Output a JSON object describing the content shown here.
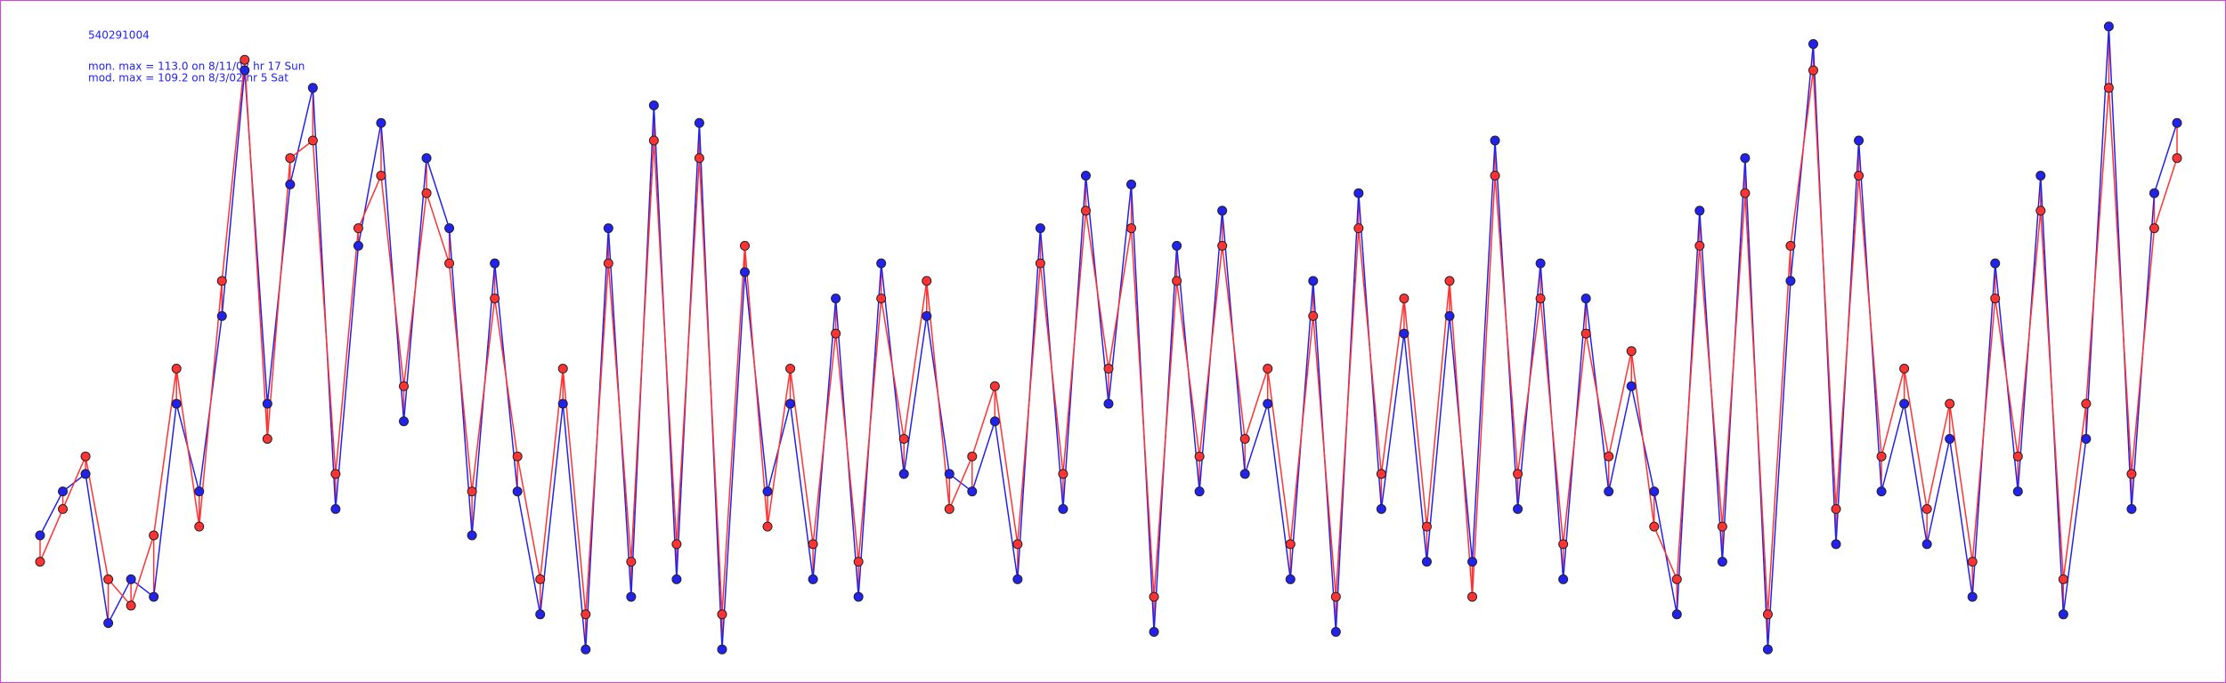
{
  "chart_data": {
    "type": "line",
    "title": "540291004",
    "annotations": [
      "mon. max =  113.0 on 8/11/02 hr 17 Sun",
      "mod. max =  109.2 on 8/3/02 hr 5 Sat"
    ],
    "ylim": [
      40,
      115
    ],
    "series": [
      {
        "color": "#2222ee",
        "values": [
          55,
          60,
          62,
          45,
          50,
          48,
          70,
          60,
          80,
          108,
          70,
          95,
          106,
          58,
          88,
          102,
          68,
          98,
          90,
          55,
          86,
          60,
          46,
          70,
          42,
          90,
          48,
          104,
          50,
          102,
          42,
          85,
          60,
          70,
          50,
          82,
          48,
          86,
          62,
          80,
          62,
          60,
          68,
          50,
          90,
          58,
          96,
          70,
          95,
          44,
          88,
          60,
          92,
          62,
          70,
          50,
          84,
          44,
          94,
          58,
          78,
          52,
          80,
          52,
          100,
          58,
          86,
          50,
          82,
          60,
          72,
          60,
          46,
          92,
          52,
          98,
          42,
          84,
          111,
          54,
          100,
          60,
          70,
          54,
          66,
          48,
          86,
          60,
          96,
          46,
          66,
          113,
          58,
          94,
          102
        ]
      },
      {
        "color": "#ff3333",
        "values": [
          52,
          58,
          64,
          50,
          47,
          55,
          74,
          56,
          84,
          109.2,
          66,
          98,
          100,
          62,
          90,
          96,
          72,
          94,
          86,
          60,
          82,
          64,
          50,
          74,
          46,
          86,
          52,
          100,
          54,
          98,
          46,
          88,
          56,
          74,
          54,
          78,
          52,
          82,
          66,
          84,
          58,
          64,
          72,
          54,
          86,
          62,
          92,
          74,
          90,
          48,
          84,
          64,
          88,
          66,
          74,
          54,
          80,
          48,
          90,
          62,
          82,
          56,
          84,
          48,
          96,
          62,
          82,
          54,
          78,
          64,
          76,
          56,
          50,
          88,
          56,
          94,
          46,
          88,
          108,
          58,
          96,
          64,
          74,
          58,
          70,
          52,
          82,
          64,
          92,
          50,
          70,
          106,
          62,
          90,
          98
        ]
      }
    ]
  }
}
